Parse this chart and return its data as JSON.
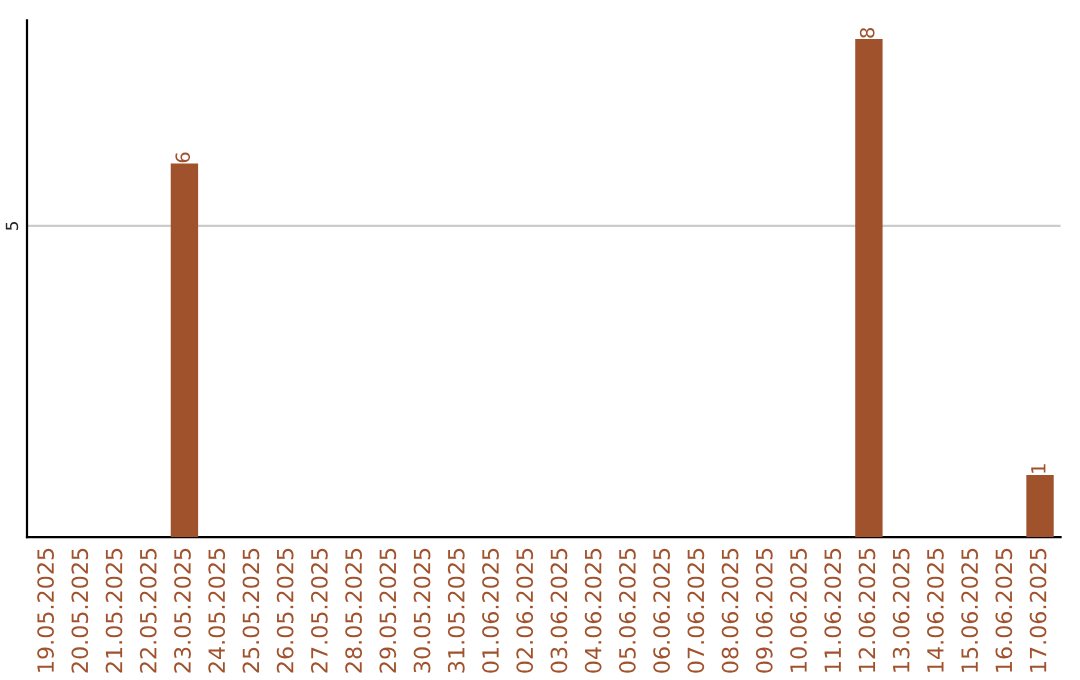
{
  "chart_data": {
    "type": "bar",
    "categories": [
      "19.05.2025",
      "20.05.2025",
      "21.05.2025",
      "22.05.2025",
      "23.05.2025",
      "24.05.2025",
      "25.05.2025",
      "26.05.2025",
      "27.05.2025",
      "28.05.2025",
      "29.05.2025",
      "30.05.2025",
      "31.05.2025",
      "01.06.2025",
      "02.06.2025",
      "03.06.2025",
      "04.06.2025",
      "05.06.2025",
      "06.06.2025",
      "07.06.2025",
      "08.06.2025",
      "09.06.2025",
      "10.06.2025",
      "11.06.2025",
      "12.06.2025",
      "13.06.2025",
      "14.06.2025",
      "15.06.2025",
      "16.06.2025",
      "17.06.2025"
    ],
    "values": [
      0,
      0,
      0,
      0,
      6,
      0,
      0,
      0,
      0,
      0,
      0,
      0,
      0,
      0,
      0,
      0,
      0,
      0,
      0,
      0,
      0,
      0,
      0,
      0,
      8,
      0,
      0,
      0,
      0,
      1
    ],
    "color": "#a0522d",
    "value_labels": [
      null,
      null,
      null,
      null,
      "6",
      null,
      null,
      null,
      null,
      null,
      null,
      null,
      null,
      null,
      null,
      null,
      null,
      null,
      null,
      null,
      null,
      null,
      null,
      null,
      "8",
      null,
      null,
      null,
      null,
      "1"
    ],
    "ylim": [
      0,
      8.3
    ],
    "yticks": [
      5
    ],
    "grid": "y"
  }
}
